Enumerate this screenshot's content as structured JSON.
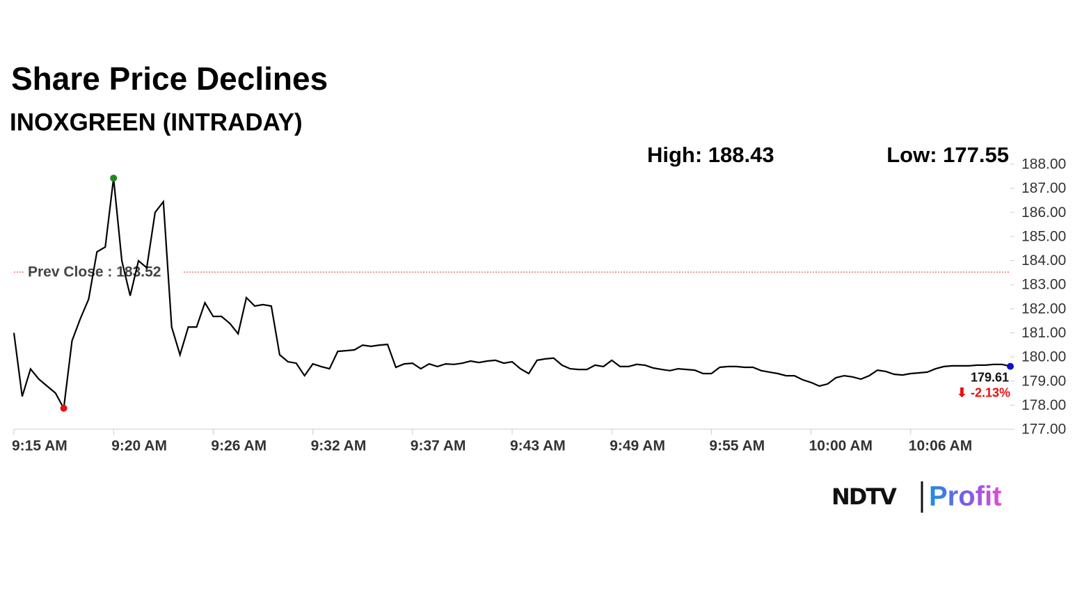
{
  "chart_data": {
    "type": "line",
    "title": "Share Price Declines",
    "subtitle": "INOXGREEN (INTRADAY)",
    "high_label": "High: 188.43",
    "low_label": "Low: 177.55",
    "prev_close": {
      "value": 183.52,
      "label": "Prev Close : 183.52"
    },
    "last_label": "179.61",
    "change_label": "⬇ -2.13%",
    "logo": {
      "brand": "NDTV",
      "product": "Profit"
    },
    "color": "#000000",
    "categories": [
      "9:15 AM",
      null,
      null,
      null,
      null,
      null,
      null,
      null,
      null,
      null,
      null,
      null,
      "9:20 AM",
      null,
      null,
      null,
      null,
      null,
      null,
      null,
      null,
      null,
      null,
      null,
      "9:26 AM",
      null,
      null,
      null,
      null,
      null,
      null,
      null,
      null,
      null,
      null,
      null,
      "9:32 AM",
      null,
      null,
      null,
      null,
      null,
      null,
      null,
      null,
      null,
      null,
      null,
      "9:37 AM",
      null,
      null,
      null,
      null,
      null,
      null,
      null,
      null,
      null,
      null,
      null,
      "9:43 AM",
      null,
      null,
      null,
      null,
      null,
      null,
      null,
      null,
      null,
      null,
      null,
      "9:49 AM",
      null,
      null,
      null,
      null,
      null,
      null,
      null,
      null,
      null,
      null,
      null,
      "9:55 AM",
      null,
      null,
      null,
      null,
      null,
      null,
      null,
      null,
      null,
      null,
      null,
      "10:00 AM",
      null,
      null,
      null,
      null,
      null,
      null,
      null,
      null,
      null,
      null,
      null,
      "10:06 AM",
      null,
      null,
      null,
      null,
      null,
      null,
      null,
      null,
      null,
      null,
      null,
      null
    ],
    "values": [
      181.0,
      178.36,
      179.5,
      179.08,
      178.79,
      178.5,
      177.87,
      180.67,
      181.59,
      182.4,
      184.36,
      184.56,
      187.42,
      183.99,
      182.54,
      183.99,
      183.7,
      186.0,
      186.44,
      181.24,
      180.09,
      181.24,
      181.24,
      182.25,
      181.68,
      181.68,
      181.39,
      180.96,
      182.46,
      182.11,
      182.17,
      182.11,
      180.09,
      179.8,
      179.74,
      179.22,
      179.71,
      179.6,
      179.51,
      180.23,
      180.26,
      180.29,
      180.49,
      180.44,
      180.49,
      180.52,
      179.57,
      179.71,
      179.74,
      179.51,
      179.71,
      179.6,
      179.71,
      179.69,
      179.74,
      179.83,
      179.77,
      179.83,
      179.86,
      179.74,
      179.8,
      179.51,
      179.31,
      179.86,
      179.92,
      179.95,
      179.66,
      179.51,
      179.48,
      179.48,
      179.66,
      179.6,
      179.86,
      179.6,
      179.6,
      179.69,
      179.66,
      179.54,
      179.48,
      179.43,
      179.51,
      179.48,
      179.45,
      179.31,
      179.31,
      179.57,
      179.6,
      179.6,
      179.57,
      179.57,
      179.43,
      179.37,
      179.31,
      179.22,
      179.22,
      179.05,
      178.94,
      178.79,
      178.88,
      179.14,
      179.22,
      179.17,
      179.08,
      179.22,
      179.45,
      179.4,
      179.28,
      179.25,
      179.31,
      179.34,
      179.37,
      179.51,
      179.6,
      179.63,
      179.63,
      179.63,
      179.66,
      179.66,
      179.69,
      179.69,
      179.61
    ],
    "high_color": "#1a8a1a",
    "low_color": "#e81010",
    "last_color": "#1010cc",
    "ylim": [
      177,
      188
    ],
    "yticks": [
      {
        "value": 177,
        "label": "177.00"
      },
      {
        "value": 178,
        "label": "178.00"
      },
      {
        "value": 179,
        "label": "179.00"
      },
      {
        "value": 180,
        "label": "180.00"
      },
      {
        "value": 181,
        "label": "181.00"
      },
      {
        "value": 182,
        "label": "182.00"
      },
      {
        "value": 183,
        "label": "183.00"
      },
      {
        "value": 184,
        "label": "184.00"
      },
      {
        "value": 185,
        "label": "185.00"
      },
      {
        "value": 186,
        "label": "186.00"
      },
      {
        "value": 187,
        "label": "187.00"
      },
      {
        "value": 188,
        "label": "188.00"
      }
    ]
  }
}
